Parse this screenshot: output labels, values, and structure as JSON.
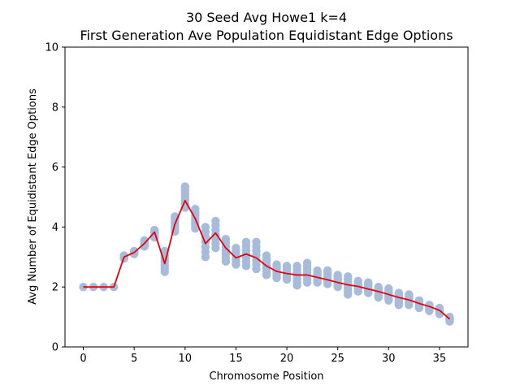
{
  "chart_data": {
    "type": "scatter",
    "title": "30 Seed Avg Howe1 k=4",
    "subtitle": "First Generation Ave Population Equidistant Edge Options",
    "xlabel": "Chromosome Position",
    "ylabel": "Avg Number of Equidistant Edge Options",
    "xlim": [
      -1.8,
      37.8
    ],
    "ylim": [
      0,
      10
    ],
    "xticks": [
      0,
      5,
      10,
      15,
      20,
      25,
      30,
      35
    ],
    "yticks": [
      0,
      2,
      4,
      6,
      8,
      10
    ],
    "grid": false,
    "scatter_color": "#a7bcda",
    "line_color": "#e8000b",
    "x": [
      0,
      1,
      2,
      3,
      4,
      5,
      6,
      7,
      8,
      9,
      10,
      11,
      12,
      13,
      14,
      15,
      16,
      17,
      18,
      19,
      20,
      21,
      22,
      23,
      24,
      25,
      26,
      27,
      28,
      29,
      30,
      31,
      32,
      33,
      34,
      35,
      36
    ],
    "series": [
      {
        "type": "scatter",
        "ranges": [
          [
            2.0,
            2.0
          ],
          [
            2.0,
            2.0
          ],
          [
            2.0,
            2.0
          ],
          [
            2.0,
            2.0
          ],
          [
            2.95,
            3.05
          ],
          [
            3.1,
            3.2
          ],
          [
            3.35,
            3.55
          ],
          [
            3.65,
            3.9
          ],
          [
            2.5,
            3.2
          ],
          [
            3.85,
            4.35
          ],
          [
            4.65,
            5.35
          ],
          [
            3.95,
            4.6
          ],
          [
            3.0,
            4.0
          ],
          [
            3.3,
            4.2
          ],
          [
            2.85,
            3.6
          ],
          [
            2.75,
            3.3
          ],
          [
            2.7,
            3.5
          ],
          [
            2.6,
            3.5
          ],
          [
            2.4,
            3.05
          ],
          [
            2.3,
            2.75
          ],
          [
            2.25,
            2.7
          ],
          [
            2.05,
            2.7
          ],
          [
            2.15,
            2.8
          ],
          [
            2.15,
            2.55
          ],
          [
            2.1,
            2.55
          ],
          [
            2.0,
            2.4
          ],
          [
            1.75,
            2.35
          ],
          [
            1.85,
            2.2
          ],
          [
            1.8,
            2.15
          ],
          [
            1.65,
            2.0
          ],
          [
            1.55,
            1.95
          ],
          [
            1.4,
            1.8
          ],
          [
            1.4,
            1.75
          ],
          [
            1.3,
            1.55
          ],
          [
            1.2,
            1.4
          ],
          [
            1.1,
            1.3
          ],
          [
            0.85,
            1.0
          ]
        ]
      },
      {
        "type": "line",
        "values": [
          2.0,
          2.0,
          2.0,
          2.0,
          3.0,
          3.15,
          3.45,
          3.83,
          2.78,
          4.1,
          4.88,
          4.28,
          3.45,
          3.8,
          3.3,
          2.97,
          3.1,
          2.97,
          2.7,
          2.52,
          2.45,
          2.4,
          2.4,
          2.32,
          2.24,
          2.15,
          2.07,
          2.02,
          1.93,
          1.85,
          1.75,
          1.65,
          1.57,
          1.45,
          1.35,
          1.22,
          0.93
        ]
      }
    ]
  }
}
